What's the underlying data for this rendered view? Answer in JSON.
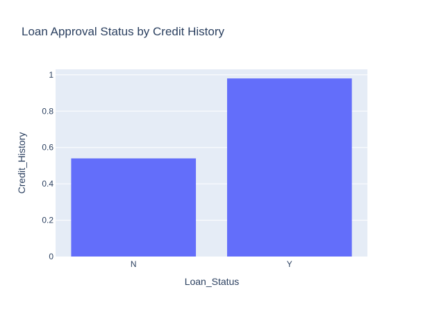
{
  "chart_data": {
    "type": "bar",
    "title": "Loan Approval Status by Credit History",
    "xlabel": "Loan_Status",
    "ylabel": "Credit_History",
    "categories": [
      "N",
      "Y"
    ],
    "values": [
      0.54,
      0.98
    ],
    "ylim": [
      0,
      1.03
    ],
    "yticks": [
      0,
      0.2,
      0.4,
      0.6,
      0.8,
      1
    ],
    "ytick_labels": [
      "0",
      "0.2",
      "0.4",
      "0.6",
      "0.8",
      "1"
    ],
    "grid": true,
    "legend": "none",
    "colors": {
      "bar": "#636efa",
      "plot_background": "#e5ecf6",
      "grid": "#ffffff",
      "text": "#2a3f5f"
    }
  }
}
